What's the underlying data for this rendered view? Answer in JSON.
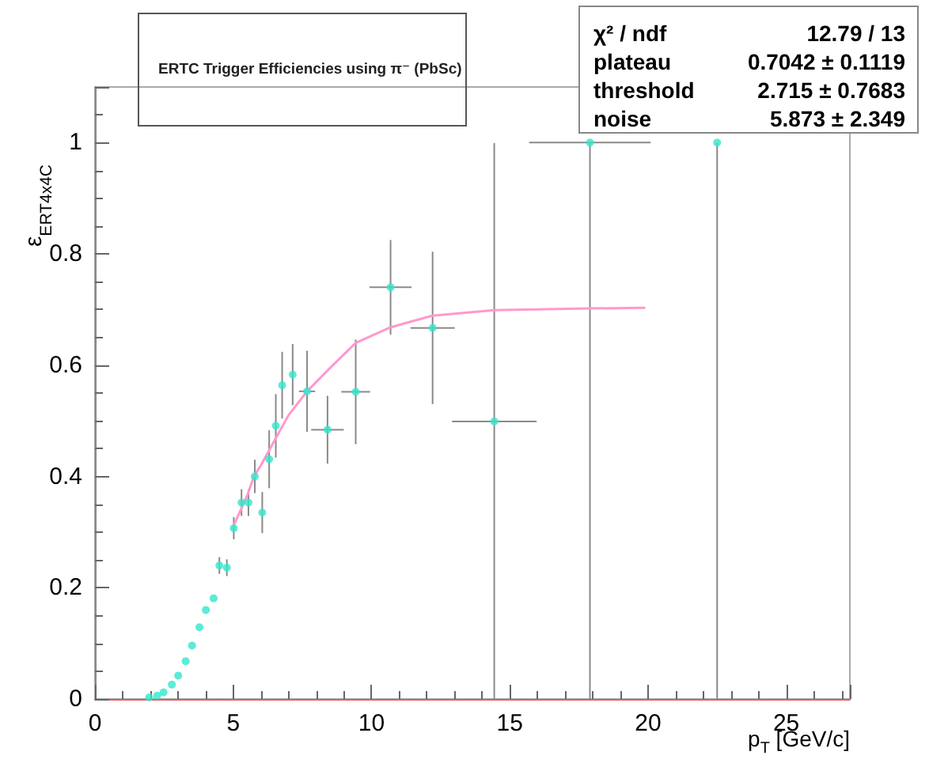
{
  "chart_data": {
    "type": "scatter",
    "title": "ERTC Trigger Efficiencies using π⁻ (PbSc)",
    "xlabel": "p$_{T}$ [GeV/c]",
    "ylabel": "ε$_{ERT4x4C}$",
    "annotations": [
      "χ² / ndf",
      "12.79 / 13",
      "plateau",
      "0.7042 ± 0.1119",
      "threshold",
      "2.715 ± 0.7683",
      "noise",
      "5.873 ± 2.349"
    ],
    "xlim": [
      0,
      27.3
    ],
    "xticks": [
      0,
      5,
      10,
      15,
      20,
      25
    ],
    "ylim": [
      0,
      1.1
    ],
    "yticks": [
      0,
      0.2,
      0.4,
      0.6,
      0.8,
      1
    ],
    "grid": false,
    "marker": "circle",
    "series": [
      {
        "color": "#33e6cc",
        "x": [
          1.96,
          2.25,
          2.48,
          2.78,
          3.01,
          3.28,
          3.51,
          3.78,
          4.01,
          4.29,
          4.5,
          4.77,
          5.02,
          5.3,
          5.55,
          5.78,
          6.05,
          6.3,
          6.54,
          6.77,
          7.15,
          7.67,
          8.41,
          9.43,
          10.69,
          12.21,
          14.44,
          17.9,
          22.5
        ],
        "values": [
          0.003,
          0.006,
          0.012,
          0.026,
          0.042,
          0.068,
          0.096,
          0.129,
          0.16,
          0.181,
          0.24,
          0.236,
          0.307,
          0.353,
          0.353,
          0.4,
          0.335,
          0.431,
          0.491,
          0.564,
          0.583,
          0.553,
          0.484,
          0.552,
          0.74,
          0.667,
          0.499,
          1,
          1
        ],
        "errors": [
          null,
          null,
          null,
          null,
          null,
          null,
          null,
          null,
          null,
          null,
          0.015,
          0.015,
          0.02,
          0.024,
          0.024,
          0.03,
          0.037,
          0.052,
          0.057,
          0.06,
          0.055,
          0.073,
          0.061,
          0.094,
          0.085,
          0.137,
          0.5,
          [
            1,
            0
          ],
          [
            1,
            0
          ]
        ],
        "xerrors": [
          null,
          null,
          null,
          null,
          null,
          null,
          null,
          null,
          null,
          null,
          null,
          null,
          null,
          null,
          null,
          null,
          null,
          null,
          null,
          null,
          null,
          0.29,
          0.59,
          0.52,
          0.76,
          0.8,
          1.53,
          2.2,
          null
        ]
      },
      {
        "type": "line",
        "color": "#ff99cc",
        "marker": "none",
        "x": [
          5.0,
          5.5,
          5.75,
          6.0,
          6.5,
          7.0,
          7.67,
          8.5,
          9.43,
          10.69,
          12.2,
          14.44,
          17.9,
          19.9
        ],
        "values": [
          0.31,
          0.365,
          0.4,
          0.42,
          0.465,
          0.51,
          0.553,
          0.595,
          0.64,
          0.668,
          0.689,
          0.699,
          0.702,
          0.703
        ]
      }
    ]
  }
}
